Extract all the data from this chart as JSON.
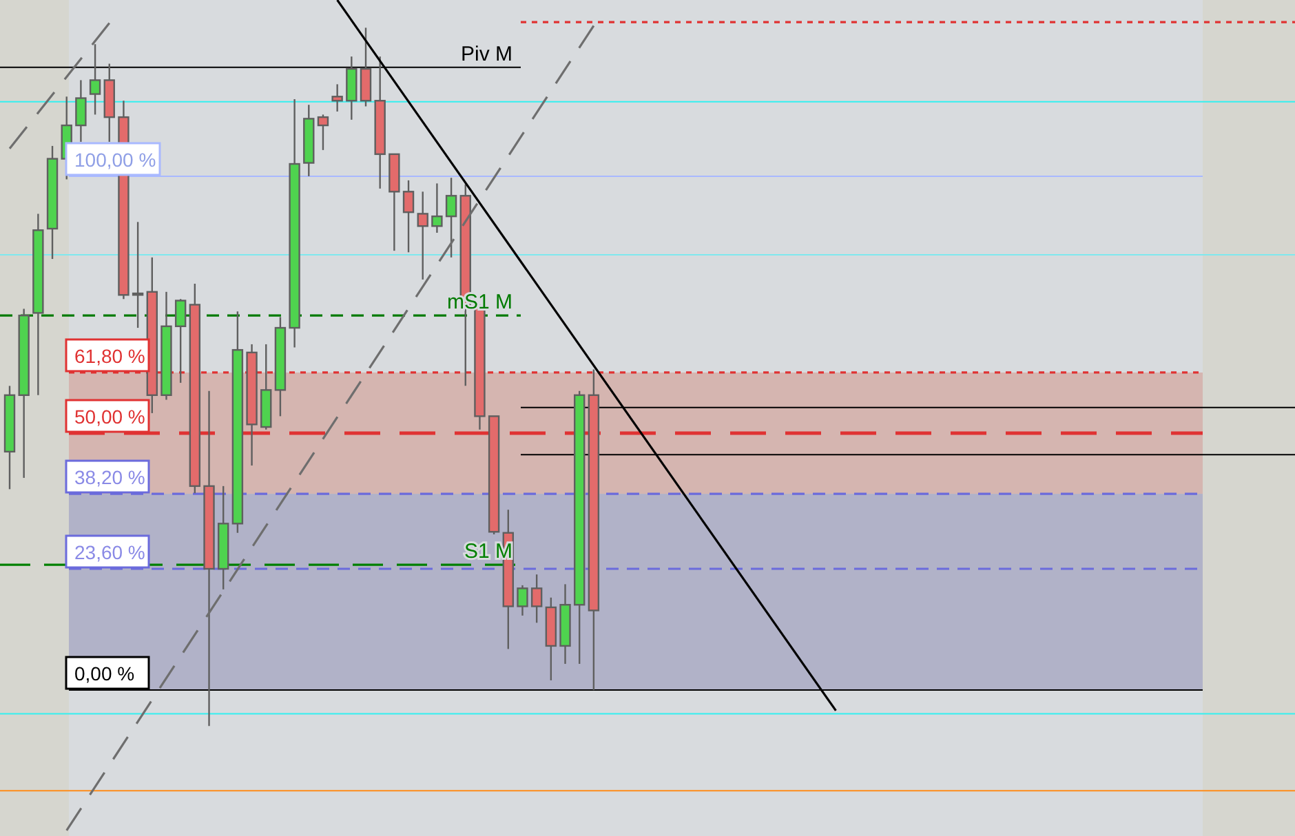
{
  "chart_data": {
    "type": "candlestick",
    "ylim": [
      -28.4,
      134.3
    ],
    "categories": [
      null,
      null,
      null,
      null,
      null,
      null,
      null,
      null,
      null,
      null,
      null,
      null,
      null,
      null,
      null,
      null,
      null,
      null,
      null,
      null,
      null,
      null,
      null,
      null,
      null,
      null,
      null,
      null,
      null,
      null,
      null,
      null,
      null,
      null,
      null,
      null,
      null,
      null,
      null,
      null,
      null,
      null,
      null,
      null,
      null,
      null,
      null,
      null,
      null,
      null,
      null,
      null,
      null,
      null,
      null,
      null,
      null,
      null,
      null,
      null,
      null,
      null,
      null,
      null,
      null,
      null,
      null,
      null,
      null,
      null,
      null,
      null,
      null,
      null,
      null,
      null,
      null,
      null,
      null,
      null,
      null,
      null,
      null,
      null,
      null,
      null,
      null,
      null,
      null,
      null,
      null
    ],
    "ohlc": [
      [
        46.4,
        59.2,
        39.1,
        57.4
      ],
      [
        57.4,
        74.2,
        41.3,
        72.9
      ],
      [
        73.4,
        92.7,
        57.4,
        89.5
      ],
      [
        89.8,
        105.9,
        83.9,
        103.4
      ],
      [
        103.4,
        115.5,
        99.4,
        109.9
      ],
      [
        109.9,
        118.7,
        106.7,
        115.2
      ],
      [
        116.0,
        125.7,
        112.0,
        118.7
      ],
      [
        118.7,
        121.9,
        106.7,
        111.5
      ],
      [
        111.5,
        114.7,
        76.1,
        76.9
      ],
      [
        76.9,
        91.1,
        70.5,
        77.2
      ],
      [
        77.5,
        84.2,
        53.9,
        57.4
      ],
      [
        57.4,
        77.5,
        56.5,
        70.8
      ],
      [
        70.8,
        76.1,
        59.8,
        75.8
      ],
      [
        75.0,
        79.1,
        38.3,
        39.7
      ],
      [
        39.7,
        58.2,
        -7.0,
        23.6
      ],
      [
        23.6,
        39.7,
        19.6,
        32.4
      ],
      [
        32.4,
        73.7,
        30.6,
        66.2
      ],
      [
        65.7,
        67.3,
        43.7,
        51.7
      ],
      [
        51.2,
        67.3,
        50.7,
        58.4
      ],
      [
        58.4,
        72.6,
        53.3,
        70.5
      ],
      [
        70.5,
        115.0,
        66.7,
        102.4
      ],
      [
        102.6,
        113.9,
        100.0,
        111.2
      ],
      [
        111.5,
        112.0,
        105.1,
        109.9
      ],
      [
        115.5,
        117.9,
        112.6,
        114.7
      ],
      [
        114.7,
        123.3,
        111.0,
        120.9
      ],
      [
        120.9,
        128.9,
        113.6,
        114.7
      ],
      [
        114.7,
        123.3,
        97.6,
        104.3
      ],
      [
        104.3,
        104.3,
        85.5,
        97.0
      ],
      [
        97.0,
        99.2,
        85.2,
        93.0
      ],
      [
        92.7,
        97.0,
        79.9,
        90.3
      ],
      [
        90.3,
        98.6,
        89.0,
        92.2
      ],
      [
        92.2,
        99.7,
        84.2,
        96.2
      ],
      [
        96.2,
        98.4,
        59.2,
        74.8
      ],
      [
        74.8,
        74.8,
        50.7,
        53.3
      ],
      [
        53.3,
        53.3,
        30.3,
        30.8
      ],
      [
        30.6,
        35.1,
        8.0,
        16.3
      ],
      [
        16.3,
        20.4,
        14.5,
        19.8
      ],
      [
        19.8,
        22.5,
        13.1,
        16.3
      ],
      [
        16.1,
        18.0,
        1.9,
        8.6
      ],
      [
        8.6,
        20.6,
        5.1,
        16.6
      ],
      [
        16.6,
        58.2,
        5.1,
        57.4
      ],
      [
        57.4,
        62.4,
        0,
        15.5
      ],
      null,
      null,
      null,
      null,
      null,
      null,
      null,
      null,
      null,
      null,
      null,
      null,
      null,
      null,
      null,
      null,
      null,
      null,
      null,
      null,
      null,
      null,
      null,
      null,
      null,
      null,
      null,
      null,
      null,
      null,
      null,
      null,
      null,
      null,
      null,
      null,
      null,
      null,
      null,
      null,
      null,
      null,
      null,
      null,
      null,
      null,
      null,
      null,
      null
    ],
    "colors": [
      "#4fd34f",
      "#4fd34f",
      "#4fd34f",
      "#4fd34f",
      "#4fd34f",
      "#4fd34f",
      "#4fd34f",
      "#e36b6b",
      "#e36b6b",
      "#4fd34f",
      "#e36b6b",
      "#4fd34f",
      "#4fd34f",
      "#e36b6b",
      "#e36b6b",
      "#4fd34f",
      "#4fd34f",
      "#e36b6b",
      "#4fd34f",
      "#4fd34f",
      "#4fd34f",
      "#4fd34f",
      "#e36b6b",
      "#e36b6b",
      "#4fd34f",
      "#e36b6b",
      "#e36b6b",
      "#e36b6b",
      "#e36b6b",
      "#e36b6b",
      "#4fd34f",
      "#4fd34f",
      "#e36b6b",
      "#e36b6b",
      "#e36b6b",
      "#e36b6b",
      "#4fd34f",
      "#e36b6b",
      "#e36b6b",
      "#4fd34f",
      "#4fd34f",
      "#e36b6b",
      null,
      null,
      null,
      null,
      null,
      null,
      null,
      null,
      null,
      null,
      null,
      null,
      null,
      null,
      null,
      null,
      null,
      null,
      null,
      null,
      null,
      null,
      null,
      null,
      null,
      null,
      null,
      null,
      null,
      null,
      null,
      null,
      null,
      null,
      null,
      null,
      null,
      null,
      null,
      null,
      null,
      null,
      null,
      null,
      null,
      null,
      null,
      null,
      null
    ],
    "series": [
      {
        "type": "line",
        "color": "#000000",
        "line_style": "solid",
        "values": [
          null,
          null,
          null,
          null,
          null,
          null,
          null,
          null,
          null,
          null,
          null,
          null,
          null,
          null,
          null,
          null,
          null,
          null,
          null,
          null,
          null,
          null,
          null,
          134.3,
          null,
          null,
          null,
          null,
          null,
          null,
          null,
          null,
          null,
          null,
          null,
          null,
          null,
          null,
          null,
          null,
          null,
          null,
          null,
          null,
          null,
          null,
          null,
          null,
          null,
          null,
          null,
          null,
          null,
          null,
          null,
          null,
          null,
          null,
          -4.0,
          null,
          null,
          null,
          null,
          null,
          null,
          null,
          null,
          null,
          null,
          null,
          null,
          null,
          null,
          null,
          null,
          null,
          null,
          null,
          null,
          null,
          null,
          null,
          null,
          null,
          null,
          null,
          null,
          null,
          null,
          null,
          null
        ]
      },
      {
        "type": "line",
        "color": "#6e6e6e",
        "line_style": "dashed",
        "values": [
          null,
          null,
          null,
          null,
          -27.3,
          null,
          null,
          null,
          null,
          null,
          null,
          null,
          null,
          null,
          null,
          null,
          null,
          null,
          null,
          null,
          null,
          null,
          null,
          null,
          null,
          null,
          null,
          null,
          null,
          null,
          null,
          null,
          null,
          null,
          null,
          null,
          null,
          null,
          null,
          null,
          null,
          129.3,
          null,
          null,
          null,
          null,
          null,
          null,
          null,
          null,
          null,
          null,
          null,
          null,
          null,
          null,
          null,
          null,
          null,
          null,
          null,
          null,
          null,
          null,
          null,
          null,
          null,
          null,
          null,
          null,
          null,
          null,
          null,
          null,
          null,
          null,
          null,
          null,
          null,
          null,
          null,
          null,
          null,
          null,
          null,
          null,
          null,
          null,
          null,
          null,
          null
        ]
      },
      {
        "type": "line",
        "color": "#6e6e6e",
        "line_style": "dashed",
        "values": [
          105.4,
          null,
          null,
          null,
          null,
          null,
          null,
          129.8,
          null,
          null,
          null,
          null,
          null,
          null,
          null,
          null,
          null,
          null,
          null,
          null,
          null,
          null,
          null,
          null,
          null,
          null,
          null,
          null,
          null,
          null,
          null,
          null,
          null,
          null,
          null,
          null,
          null,
          null,
          null,
          null,
          null,
          null,
          null,
          null,
          null,
          null,
          null,
          null,
          null,
          null,
          null,
          null,
          null,
          null,
          null,
          null,
          null,
          null,
          null,
          null,
          null,
          null,
          null,
          null,
          null,
          null,
          null,
          null,
          null,
          null,
          null,
          null,
          null,
          null,
          null,
          null,
          null,
          null,
          null,
          null,
          null,
          null,
          null,
          null,
          null,
          null,
          null,
          null,
          null,
          null,
          null
        ]
      }
    ],
    "bands": [
      {
        "axis": "y",
        "from": 38.2,
        "to": 61.8,
        "color": "#d5b5b0"
      },
      {
        "axis": "y",
        "from": 0,
        "to": 38.2,
        "color": "#b1b2c8"
      }
    ],
    "ref_lines": [
      {
        "axis": "y",
        "value": 100,
        "label": "100,00 %",
        "color": "#a9b9ff",
        "line_style": "solid"
      },
      {
        "axis": "y",
        "value": 61.8,
        "label": "61,80 %",
        "color": "#e03232",
        "line_style": "dotted"
      },
      {
        "axis": "y",
        "value": 50,
        "label": "50,00 %",
        "color": "#e03232",
        "line_style": "dashed"
      },
      {
        "axis": "y",
        "value": 38.2,
        "label": "38,20 %",
        "color": "#6b6bdc",
        "line_style": "dashed"
      },
      {
        "axis": "y",
        "value": 23.6,
        "label": "23,60 %",
        "color": "#6b6bdc",
        "line_style": "dashed"
      },
      {
        "axis": "y",
        "value": 0,
        "label": "0,00 %",
        "color": "#000000",
        "line_style": "solid"
      },
      {
        "axis": "y",
        "value": 121.2,
        "label": "Piv M",
        "color": "#000000",
        "line_style": "solid"
      },
      {
        "axis": "y",
        "value": 72.9,
        "label": "mS1 M",
        "color": "#007a00",
        "line_style": "dashed"
      },
      {
        "axis": "y",
        "value": 24.4,
        "label": "S1 M",
        "color": "#008000",
        "line_style": "dashed"
      },
      {
        "axis": "y",
        "value": 114.5,
        "color": "#33f0f0",
        "line_style": "solid"
      },
      {
        "axis": "y",
        "value": 84.7,
        "color": "#7ee8ee",
        "line_style": "solid"
      },
      {
        "axis": "y",
        "value": -4.6,
        "color": "#33f0f0",
        "line_style": "solid"
      },
      {
        "axis": "y",
        "value": -19.6,
        "color": "#ff8c1a",
        "line_style": "solid"
      },
      {
        "axis": "y",
        "value": 130.0,
        "color": "#e03232",
        "line_style": "dotted"
      },
      {
        "axis": "y",
        "value": 55.0,
        "color": "#000000",
        "line_style": "solid"
      },
      {
        "axis": "y",
        "value": 45.8,
        "color": "#000000",
        "line_style": "solid"
      }
    ]
  }
}
